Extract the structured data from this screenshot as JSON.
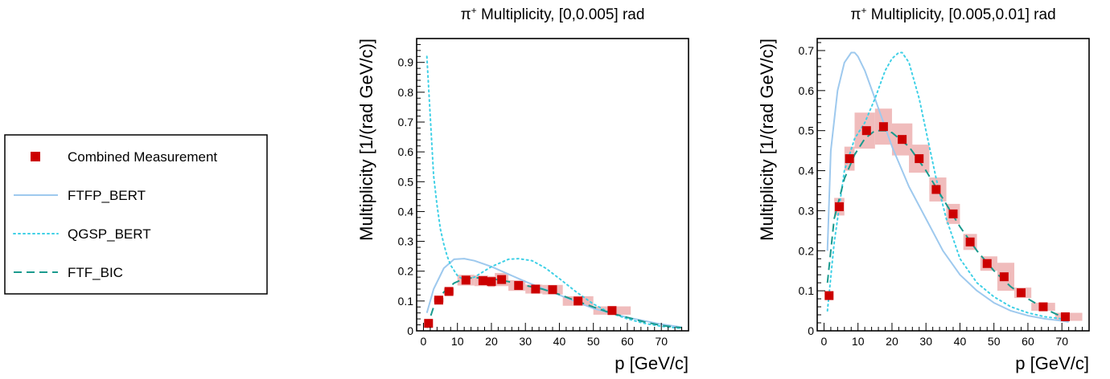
{
  "legend": {
    "entries": [
      {
        "label": "Combined Measurement",
        "kind": "marker",
        "color": "#cc0000"
      },
      {
        "label": "FTFP_BERT",
        "kind": "solid",
        "color": "#9ec9ee"
      },
      {
        "label": "QGSP_BERT",
        "kind": "dotted",
        "color": "#3fd0e6"
      },
      {
        "label": "FTF_BIC",
        "kind": "dashed",
        "color": "#1a9a8e"
      }
    ]
  },
  "chart_data": [
    {
      "type": "scatter",
      "title_prefix": "π",
      "title_sup": "+",
      "title_rest": " Multiplicity, [0,0.005] rad",
      "xlabel": "p [GeV/c]",
      "ylabel": "Multiplicity [1/(rad GeV/c)]",
      "xlim": [
        -2,
        78
      ],
      "ylim": [
        0,
        0.98
      ],
      "xticks": [
        0,
        10,
        20,
        30,
        40,
        50,
        60,
        70
      ],
      "yticks": [
        0,
        0.1,
        0.2,
        0.3,
        0.4,
        0.5,
        0.6,
        0.7,
        0.8,
        0.9
      ],
      "ytick_labels": [
        "0",
        "0.1",
        "0.2",
        "0.3",
        "0.4",
        "0.5",
        "0.6",
        "0.7",
        "0.8",
        "0.9"
      ],
      "measurement": {
        "name": "Combined Measurement",
        "x": [
          1.5,
          4.5,
          7.5,
          12.5,
          17.5,
          20,
          23,
          28,
          33,
          38,
          45.5,
          55.5
        ],
        "y": [
          0.025,
          0.103,
          0.132,
          0.17,
          0.168,
          0.165,
          0.172,
          0.152,
          0.14,
          0.138,
          0.1,
          0.068
        ],
        "syst_x0": [
          1,
          3,
          6,
          10,
          15,
          19,
          21,
          25,
          30,
          35,
          41,
          50
        ],
        "syst_x1": [
          2,
          6,
          9,
          15,
          19,
          21,
          25,
          30,
          35,
          41,
          50,
          61
        ],
        "syst_dy": [
          0.005,
          0.008,
          0.01,
          0.018,
          0.018,
          0.018,
          0.022,
          0.018,
          0.015,
          0.016,
          0.016,
          0.014
        ]
      },
      "series": [
        {
          "name": "FTFP_BERT",
          "style": "solid",
          "x": [
            1,
            3,
            6,
            9,
            12,
            15,
            20,
            25,
            30,
            40,
            50,
            60,
            70,
            76
          ],
          "y": [
            0.06,
            0.14,
            0.21,
            0.24,
            0.242,
            0.235,
            0.215,
            0.19,
            0.165,
            0.12,
            0.075,
            0.045,
            0.022,
            0.012
          ]
        },
        {
          "name": "QGSP_BERT",
          "style": "dotted",
          "x": [
            1,
            2,
            3,
            4,
            5,
            6,
            7,
            8,
            10,
            12,
            15,
            20,
            25,
            28,
            32,
            36,
            40,
            45,
            50,
            55,
            60,
            65,
            70,
            76
          ],
          "y": [
            0.92,
            0.72,
            0.52,
            0.42,
            0.34,
            0.29,
            0.25,
            0.22,
            0.185,
            0.17,
            0.18,
            0.215,
            0.24,
            0.242,
            0.235,
            0.21,
            0.175,
            0.13,
            0.09,
            0.06,
            0.04,
            0.025,
            0.015,
            0.008
          ]
        },
        {
          "name": "FTF_BIC",
          "style": "dashed",
          "x": [
            1,
            3,
            6,
            9,
            12,
            15,
            20,
            25,
            30,
            35,
            40,
            45,
            50,
            55,
            60,
            65,
            70,
            76
          ],
          "y": [
            0.01,
            0.08,
            0.13,
            0.16,
            0.175,
            0.178,
            0.175,
            0.165,
            0.152,
            0.14,
            0.122,
            0.1,
            0.08,
            0.06,
            0.045,
            0.03,
            0.018,
            0.01
          ]
        }
      ]
    },
    {
      "type": "scatter",
      "title_prefix": "π",
      "title_sup": "+",
      "title_rest": " Multiplicity, [0.005,0.01] rad",
      "xlabel": "p [GeV/c]",
      "ylabel": "Multiplicity [1/(rad GeV/c)]",
      "xlim": [
        -2,
        78
      ],
      "ylim": [
        0,
        0.73
      ],
      "xticks": [
        0,
        10,
        20,
        30,
        40,
        50,
        60,
        70
      ],
      "yticks": [
        0,
        0.1,
        0.2,
        0.3,
        0.4,
        0.5,
        0.6,
        0.7
      ],
      "ytick_labels": [
        "0",
        "0.1",
        "0.2",
        "0.3",
        "0.4",
        "0.5",
        "0.6",
        "0.7"
      ],
      "measurement": {
        "name": "Combined Measurement",
        "x": [
          1.5,
          4.5,
          7.5,
          12.5,
          17.5,
          23,
          28,
          33,
          38,
          43,
          48,
          53,
          58,
          64.5,
          71
        ],
        "y": [
          0.088,
          0.31,
          0.43,
          0.5,
          0.51,
          0.478,
          0.43,
          0.353,
          0.292,
          0.222,
          0.168,
          0.135,
          0.095,
          0.06,
          0.035
        ],
        "syst_x0": [
          1,
          3,
          6,
          9,
          15,
          20,
          25,
          31,
          36,
          41,
          46,
          51,
          56,
          61,
          68
        ],
        "syst_x1": [
          2,
          6,
          9,
          15,
          20,
          26,
          31,
          36,
          40,
          45,
          51,
          56,
          61,
          68,
          76
        ],
        "syst_dy": [
          0.005,
          0.022,
          0.03,
          0.045,
          0.045,
          0.04,
          0.035,
          0.03,
          0.025,
          0.02,
          0.018,
          0.035,
          0.013,
          0.01,
          0.01
        ]
      },
      "series": [
        {
          "name": "FTFP_BERT",
          "style": "solid",
          "x": [
            1,
            2,
            4,
            6,
            8,
            9,
            10,
            12,
            15,
            20,
            25,
            30,
            35,
            40,
            45,
            50,
            55,
            60,
            65,
            70,
            72
          ],
          "y": [
            0.2,
            0.45,
            0.6,
            0.67,
            0.695,
            0.695,
            0.685,
            0.65,
            0.58,
            0.46,
            0.36,
            0.28,
            0.2,
            0.14,
            0.1,
            0.07,
            0.05,
            0.038,
            0.03,
            0.025,
            0.022
          ]
        },
        {
          "name": "QGSP_BERT",
          "style": "dotted",
          "x": [
            1,
            3,
            6,
            9,
            12,
            15,
            18,
            20,
            22,
            23,
            25,
            28,
            30,
            33,
            36,
            40,
            45,
            50,
            55,
            60,
            65,
            70,
            72
          ],
          "y": [
            0.05,
            0.22,
            0.4,
            0.48,
            0.52,
            0.58,
            0.65,
            0.68,
            0.695,
            0.695,
            0.67,
            0.58,
            0.5,
            0.38,
            0.28,
            0.18,
            0.12,
            0.085,
            0.06,
            0.045,
            0.035,
            0.03,
            0.028
          ]
        },
        {
          "name": "FTF_BIC",
          "style": "dashed",
          "x": [
            1,
            3,
            6,
            9,
            12,
            15,
            18,
            20,
            25,
            30,
            35,
            40,
            45,
            50,
            55,
            60,
            65,
            70,
            72
          ],
          "y": [
            0.12,
            0.28,
            0.38,
            0.44,
            0.48,
            0.5,
            0.5,
            0.495,
            0.46,
            0.4,
            0.33,
            0.26,
            0.2,
            0.15,
            0.11,
            0.08,
            0.055,
            0.035,
            0.03
          ]
        }
      ]
    }
  ]
}
